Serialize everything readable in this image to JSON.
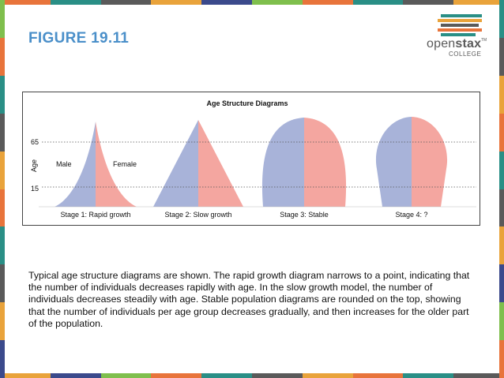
{
  "figure": {
    "title": "FIGURE 19.11"
  },
  "logo": {
    "brand_light": "open",
    "brand_bold": "stax",
    "trademark": "TM",
    "sub": "COLLEGE",
    "bar_colors": [
      "#2a8f86",
      "#e9a33b",
      "#5a5a5a",
      "#e8743b",
      "#2a8f86"
    ]
  },
  "frame": {
    "stripe_colors": [
      "#e8743b",
      "#2a8f86",
      "#5a5a5a",
      "#e9a33b",
      "#3b4a8c",
      "#7fbf4d",
      "#e8743b",
      "#2a8f86",
      "#5a5a5a",
      "#e9a33b"
    ]
  },
  "diagram": {
    "title": "Age Structure Diagrams",
    "y_axis_label": "Age",
    "reference_ages": [
      "65",
      "15"
    ],
    "male_label": "Male",
    "female_label": "Female",
    "male_color": "#a8b3d9",
    "female_color": "#f4a6a0",
    "stages": [
      {
        "label": "Stage 1: Rapid growth",
        "shape": "rapid"
      },
      {
        "label": "Stage 2: Slow growth",
        "shape": "slow"
      },
      {
        "label": "Stage 3: Stable",
        "shape": "stable"
      },
      {
        "label": "Stage 4: ?",
        "shape": "declining"
      }
    ]
  },
  "caption": "Typical age structure diagrams are shown. The rapid growth diagram narrows to a point, indicating that the number of individuals decreases rapidly with age. In the slow growth model, the number of individuals decreases steadily with age. Stable population diagrams are rounded on the top, showing that the number of individuals per age group decreases gradually, and then increases for the older part of the population."
}
